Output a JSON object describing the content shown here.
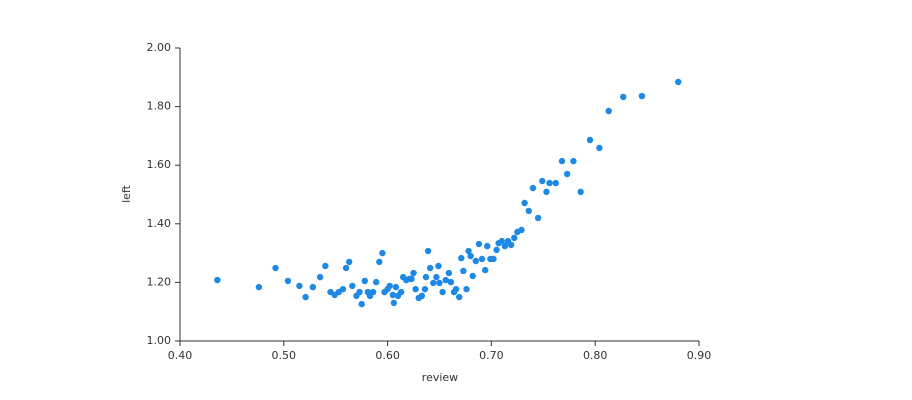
{
  "chart_data": {
    "type": "scatter",
    "x_label": "review",
    "y_label": "left",
    "color": "#1e88e5",
    "xlim": [
      0.4,
      0.9
    ],
    "xticks": [
      {
        "value": 0.4,
        "label": "0.40"
      },
      {
        "value": 0.5,
        "label": "0.50"
      },
      {
        "value": 0.6,
        "label": "0.60"
      },
      {
        "value": 0.7,
        "label": "0.70"
      },
      {
        "value": 0.8,
        "label": "0.80"
      },
      {
        "value": 0.9,
        "label": "0.90"
      }
    ],
    "ylim": [
      1.0,
      2.0
    ],
    "yticks": [
      {
        "value": 1.0,
        "label": "1.00"
      },
      {
        "value": 1.2,
        "label": "1.20"
      },
      {
        "value": 1.4,
        "label": "1.40"
      },
      {
        "value": 1.6,
        "label": "1.60"
      },
      {
        "value": 1.8,
        "label": "1.80"
      },
      {
        "value": 2.0,
        "label": "2.00"
      }
    ],
    "x": [
      0.436,
      0.476,
      0.492,
      0.504,
      0.515,
      0.521,
      0.528,
      0.535,
      0.54,
      0.545,
      0.549,
      0.553,
      0.557,
      0.56,
      0.563,
      0.566,
      0.57,
      0.573,
      0.575,
      0.578,
      0.581,
      0.583,
      0.586,
      0.589,
      0.592,
      0.595,
      0.597,
      0.6,
      0.602,
      0.605,
      0.606,
      0.608,
      0.61,
      0.613,
      0.615,
      0.618,
      0.621,
      0.623,
      0.625,
      0.627,
      0.63,
      0.633,
      0.636,
      0.637,
      0.639,
      0.641,
      0.644,
      0.647,
      0.649,
      0.65,
      0.653,
      0.656,
      0.659,
      0.661,
      0.664,
      0.666,
      0.669,
      0.671,
      0.673,
      0.676,
      0.678,
      0.68,
      0.682,
      0.685,
      0.688,
      0.691,
      0.694,
      0.696,
      0.699,
      0.702,
      0.705,
      0.707,
      0.71,
      0.713,
      0.716,
      0.719,
      0.722,
      0.725,
      0.729,
      0.732,
      0.736,
      0.74,
      0.745,
      0.749,
      0.753,
      0.756,
      0.762,
      0.768,
      0.773,
      0.779,
      0.786,
      0.795,
      0.804,
      0.813,
      0.827,
      0.845,
      0.88
    ],
    "y": [
      1.208,
      1.184,
      1.249,
      1.205,
      1.188,
      1.15,
      1.184,
      1.218,
      1.256,
      1.167,
      1.157,
      1.167,
      1.177,
      1.249,
      1.27,
      1.188,
      1.154,
      1.167,
      1.126,
      1.205,
      1.167,
      1.154,
      1.167,
      1.201,
      1.27,
      1.3,
      1.167,
      1.177,
      1.188,
      1.157,
      1.13,
      1.184,
      1.154,
      1.167,
      1.218,
      1.208,
      1.212,
      1.212,
      1.232,
      1.177,
      1.147,
      1.154,
      1.177,
      1.218,
      1.307,
      1.249,
      1.198,
      1.218,
      1.256,
      1.198,
      1.167,
      1.208,
      1.232,
      1.201,
      1.167,
      1.177,
      1.15,
      1.283,
      1.239,
      1.177,
      1.307,
      1.29,
      1.222,
      1.273,
      1.331,
      1.28,
      1.242,
      1.324,
      1.28,
      1.28,
      1.311,
      1.334,
      1.341,
      1.324,
      1.341,
      1.328,
      1.352,
      1.372,
      1.379,
      1.471,
      1.444,
      1.522,
      1.42,
      1.546,
      1.509,
      1.539,
      1.539,
      1.614,
      1.57,
      1.614,
      1.509,
      1.686,
      1.659,
      1.785,
      1.833,
      1.836,
      1.884
    ]
  }
}
